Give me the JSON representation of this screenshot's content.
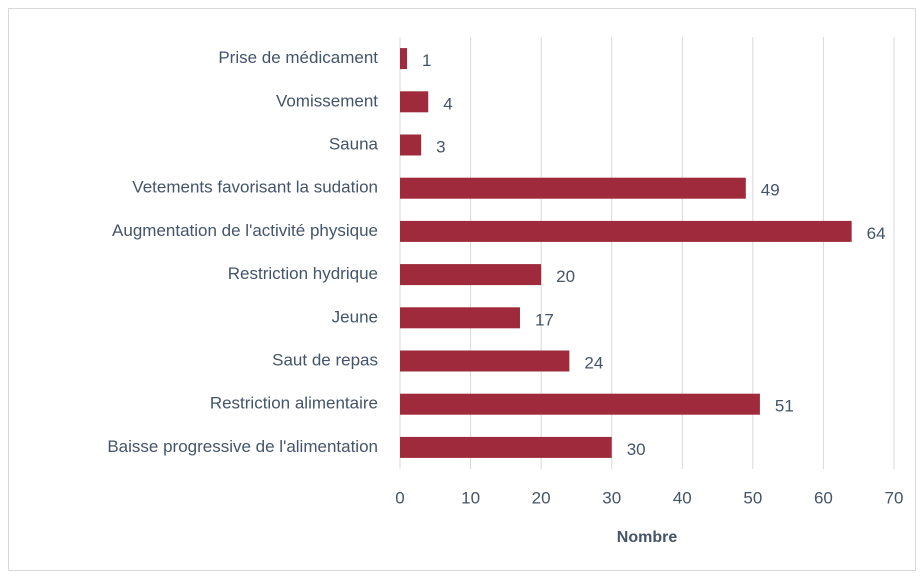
{
  "chart_data": {
    "type": "bar",
    "orientation": "horizontal",
    "x_label": "Nombre",
    "categories": [
      "Prise de médicament",
      "Vomissement",
      "Sauna",
      "Vetements favorisant la sudation",
      "Augmentation de l'activité physique",
      "Restriction hydrique",
      "Jeune",
      "Saut de repas",
      "Restriction alimentaire",
      "Baisse progressive de l'alimentation"
    ],
    "values": [
      1,
      4,
      3,
      49,
      64,
      20,
      17,
      24,
      51,
      30
    ],
    "color": "#9e2a3b",
    "xlim": [
      0,
      70
    ],
    "xticks": [
      0,
      10,
      20,
      30,
      40,
      50,
      60,
      70
    ],
    "grid": true,
    "data_labels": true
  }
}
